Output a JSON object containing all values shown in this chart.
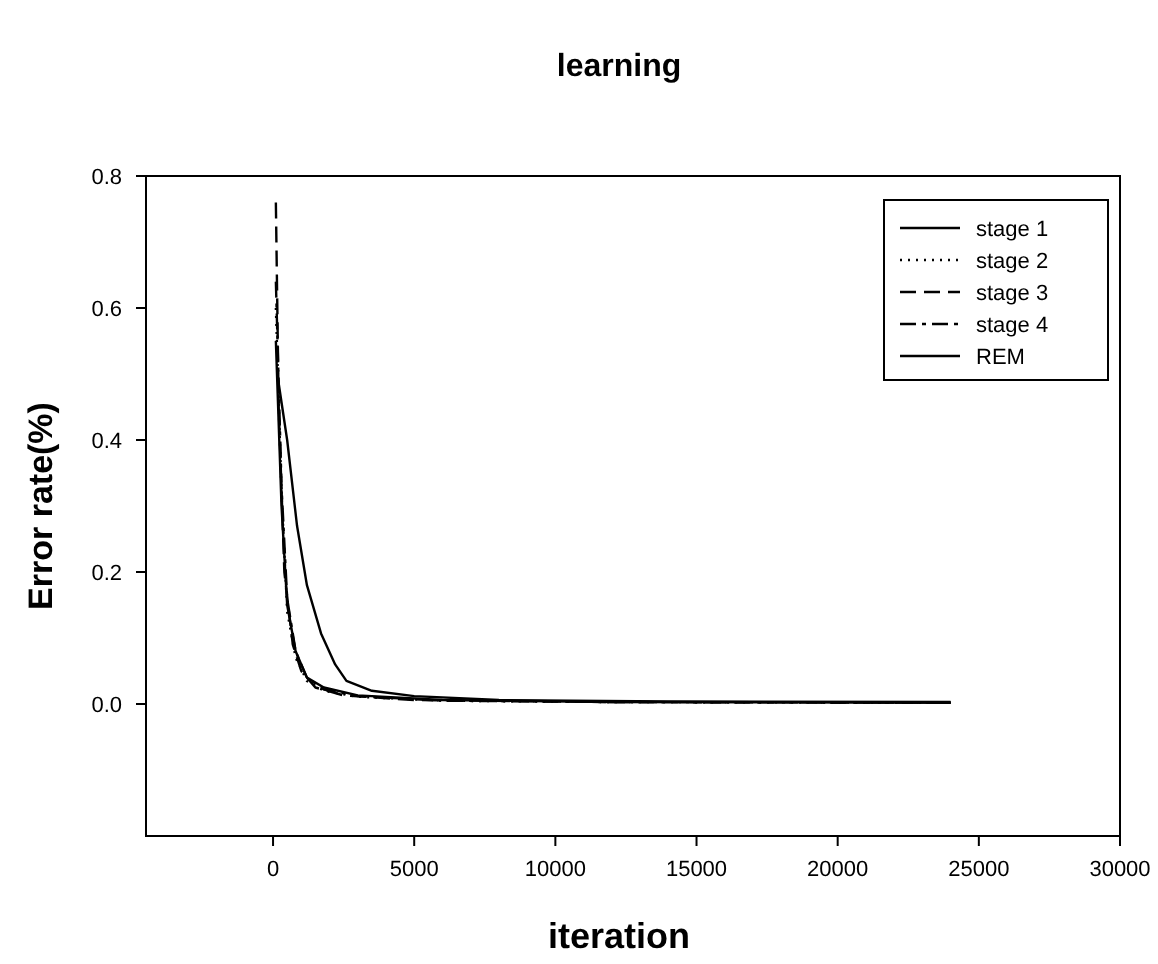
{
  "chart_data": {
    "type": "line",
    "title": "learning",
    "xlabel": "iteration",
    "ylabel": "Error rate(%)",
    "xlim": [
      -4500,
      30000
    ],
    "ylim": [
      -0.2,
      0.8
    ],
    "xticks": [
      0,
      5000,
      10000,
      15000,
      20000,
      25000,
      30000
    ],
    "yticks": [
      {
        "value": 0,
        "label": "0.0"
      },
      0.2,
      0.4,
      0.6,
      0.8
    ],
    "legend": "top right",
    "grid": false,
    "series": [
      {
        "name": "stage 1",
        "color": "#000000",
        "line_style": "solid",
        "x": [
          100,
          300,
          500,
          800,
          1200,
          1800,
          3000,
          6000,
          12000,
          24000
        ],
        "values": [
          0.55,
          0.3,
          0.15,
          0.08,
          0.04,
          0.025,
          0.013,
          0.006,
          0.003,
          0.002
        ]
      },
      {
        "name": "stage 2",
        "color": "#000000",
        "line_style": "dotted",
        "x": [
          100,
          300,
          500,
          800,
          1200,
          1800,
          3000,
          6000,
          12000,
          24000
        ],
        "values": [
          0.6,
          0.32,
          0.14,
          0.07,
          0.035,
          0.02,
          0.011,
          0.005,
          0.003,
          0.002
        ]
      },
      {
        "name": "stage 3",
        "color": "#000000",
        "line_style": "dashed",
        "x": [
          100,
          200,
          400,
          700,
          1000,
          1500,
          2500,
          5000,
          12000,
          24000
        ],
        "values": [
          0.76,
          0.45,
          0.2,
          0.09,
          0.05,
          0.025,
          0.013,
          0.006,
          0.003,
          0.002
        ]
      },
      {
        "name": "stage 4",
        "color": "#000000",
        "line_style": "dashdot",
        "x": [
          100,
          300,
          500,
          800,
          1200,
          1800,
          3000,
          6000,
          12000,
          24000
        ],
        "values": [
          0.64,
          0.33,
          0.16,
          0.08,
          0.04,
          0.022,
          0.012,
          0.005,
          0.003,
          0.002
        ]
      },
      {
        "name": "REM",
        "color": "#000000",
        "line_style": "solid",
        "x": [
          150,
          500,
          850,
          1200,
          1700,
          2200,
          2600,
          3500,
          5000,
          8000,
          14000,
          24000
        ],
        "values": [
          0.5,
          0.4,
          0.27,
          0.18,
          0.107,
          0.06,
          0.035,
          0.02,
          0.012,
          0.006,
          0.004,
          0.003
        ]
      }
    ]
  }
}
